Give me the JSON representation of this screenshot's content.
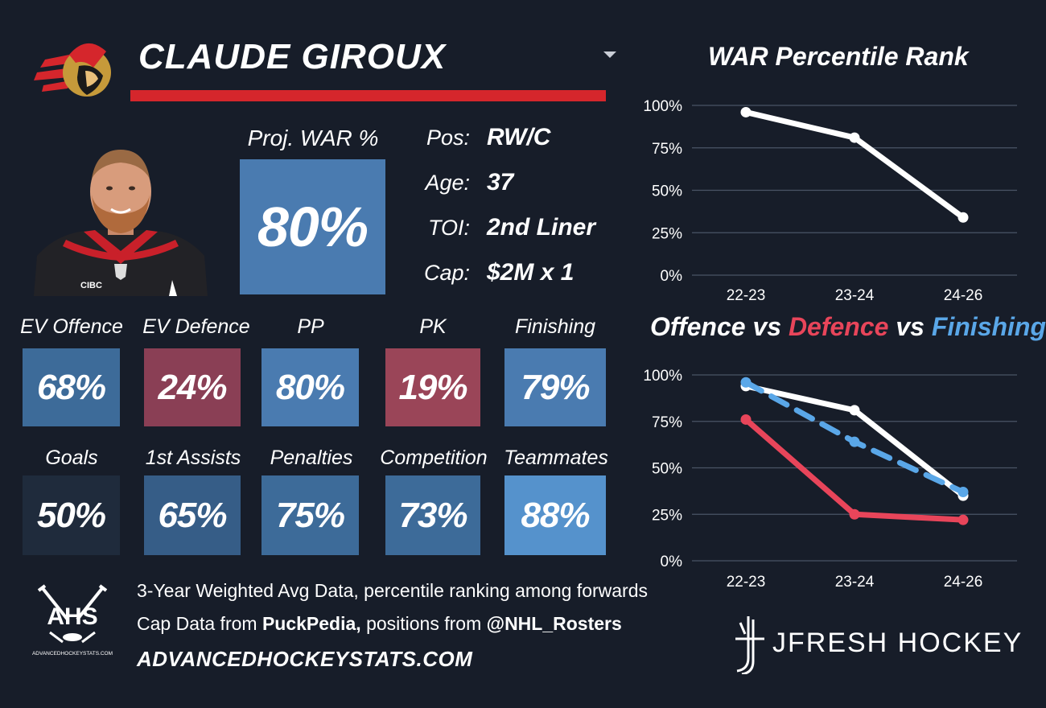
{
  "player": {
    "name": "CLAUDE GIROUX",
    "team_logo_icon": "ottawa-senators-logo-icon",
    "photo_icon": "player-headshot-icon"
  },
  "proj_war": {
    "label": "Proj. WAR %",
    "value": "80%",
    "color": "#4a7bb0"
  },
  "info": [
    {
      "label": "Pos:",
      "value": "RW/C"
    },
    {
      "label": "Age:",
      "value": "37"
    },
    {
      "label": "TOI:",
      "value": "2nd Liner"
    },
    {
      "label": "Cap:",
      "value": "$2M x 1"
    }
  ],
  "metrics_row1": [
    {
      "label": "EV Offence",
      "value": "68%",
      "color": "#3d6b99"
    },
    {
      "label": "EV Defence",
      "value": "24%",
      "color": "#8a3f55"
    },
    {
      "label": "PP",
      "value": "80%",
      "color": "#4a7bb0"
    },
    {
      "label": "PK",
      "value": "19%",
      "color": "#9a4558"
    },
    {
      "label": "Finishing",
      "value": "79%",
      "color": "#4a7bb0"
    }
  ],
  "metrics_row2": [
    {
      "label": "Goals",
      "value": "50%",
      "color": "#1f2b3c"
    },
    {
      "label": "1st Assists",
      "value": "65%",
      "color": "#365d87"
    },
    {
      "label": "Penalties",
      "value": "75%",
      "color": "#3d6b99"
    },
    {
      "label": "Competition",
      "value": "73%",
      "color": "#3d6b99"
    },
    {
      "label": "Teammates",
      "value": "88%",
      "color": "#5592cc"
    }
  ],
  "footer": {
    "line1": "3-Year Weighted Avg Data, percentile ranking among forwards",
    "line2_prefix": "Cap Data from ",
    "line2_bold1": "PuckPedia,",
    "line2_mid": " positions from ",
    "line2_bold2": "@NHL_Rosters",
    "site": "ADVANCEDHOCKEYSTATS.COM",
    "ahs_logo_text": "AHS",
    "ahs_logo_subtext": "ADVANCEDHOCKEYSTATS.COM",
    "jfresh": "JFRESH HOCKEY"
  },
  "charts": {
    "chart1_title": "WAR Percentile Rank",
    "chart2_title_parts": [
      {
        "text": "Offence",
        "color": "#ffffff"
      },
      {
        "text": " vs ",
        "color": "#ffffff"
      },
      {
        "text": "Defence",
        "color": "#e8455a"
      },
      {
        "text": " vs ",
        "color": "#ffffff"
      },
      {
        "text": "Finishing",
        "color": "#5aa7e8"
      }
    ]
  },
  "chart_data": [
    {
      "type": "line",
      "title": "WAR Percentile Rank",
      "categories": [
        "22-23",
        "23-24",
        "24-26"
      ],
      "ylim": [
        0,
        100
      ],
      "yticks": [
        "0%",
        "25%",
        "50%",
        "75%",
        "100%"
      ],
      "grid": true,
      "series": [
        {
          "values": [
            96,
            81,
            34
          ],
          "color": "#ffffff",
          "style": "solid"
        }
      ]
    },
    {
      "type": "line",
      "title": "Offence vs Defence vs Finishing",
      "categories": [
        "22-23",
        "23-24",
        "24-26"
      ],
      "ylim": [
        0,
        100
      ],
      "yticks": [
        "0%",
        "25%",
        "50%",
        "75%",
        "100%"
      ],
      "grid": true,
      "series": [
        {
          "name": "Offence",
          "values": [
            94,
            81,
            35
          ],
          "color": "#ffffff",
          "style": "solid"
        },
        {
          "name": "Defence",
          "values": [
            76,
            25,
            22
          ],
          "color": "#e8455a",
          "style": "solid"
        },
        {
          "name": "Finishing",
          "values": [
            96,
            64,
            37
          ],
          "color": "#5aa7e8",
          "style": "dashed"
        }
      ]
    }
  ]
}
